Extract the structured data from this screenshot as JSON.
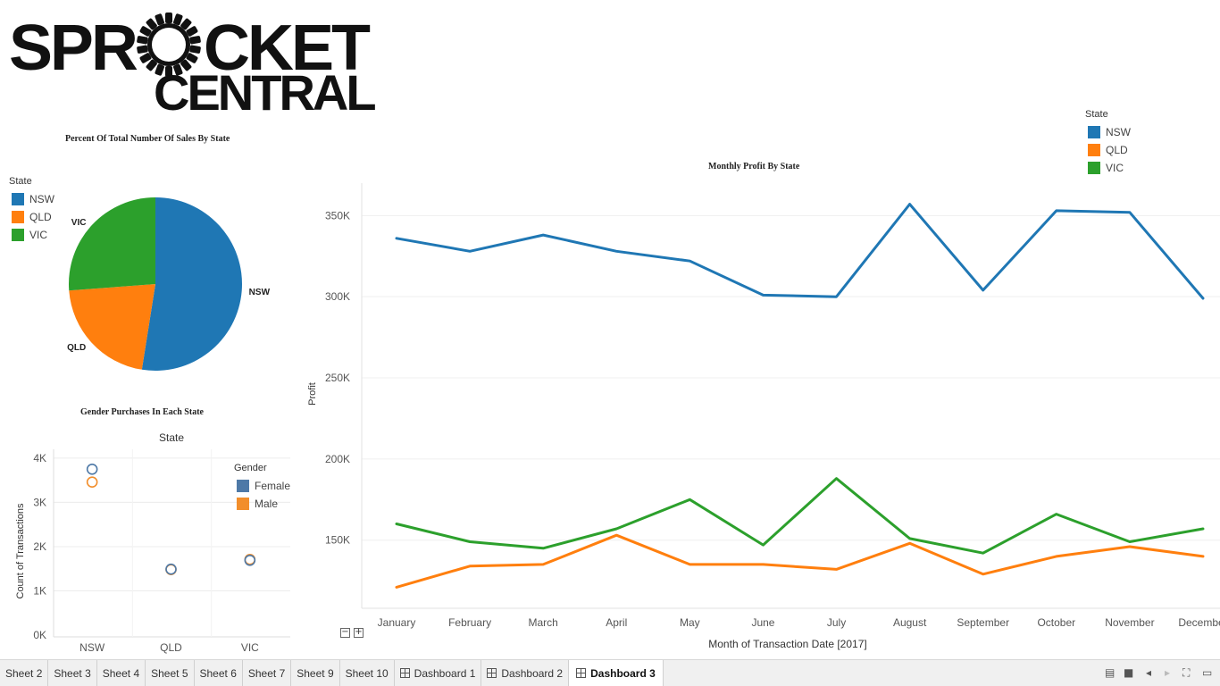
{
  "logo": {
    "line1_a": "SPR",
    "line1_b": "CKET",
    "line2": "CENTRAL"
  },
  "pie_chart": {
    "title": "Percent Of Total Number Of Sales By State",
    "legend_title": "State",
    "legend": [
      {
        "label": "NSW",
        "color": "#1f77b4"
      },
      {
        "label": "QLD",
        "color": "#ff7f0e"
      },
      {
        "label": "VIC",
        "color": "#2ca02c"
      }
    ]
  },
  "scatter_chart": {
    "title": "Gender Purchases In Each State",
    "legend_title": "Gender",
    "legend": [
      {
        "label": "Female",
        "color": "#4e79a7"
      },
      {
        "label": "Male",
        "color": "#f28e2b"
      }
    ]
  },
  "line_chart": {
    "title": "Monthly Profit By State",
    "legend_title": "State",
    "legend": [
      {
        "label": "NSW",
        "color": "#1f77b4"
      },
      {
        "label": "QLD",
        "color": "#ff7f0e"
      },
      {
        "label": "VIC",
        "color": "#2ca02c"
      }
    ]
  },
  "chart_data": [
    {
      "type": "pie",
      "title": "Percent Of Total Number Of Sales By State",
      "legend_title": "State",
      "categories": [
        "NSW",
        "QLD",
        "VIC"
      ],
      "values": [
        52.5,
        21.3,
        26.2
      ],
      "colors": [
        "#1f77b4",
        "#ff7f0e",
        "#2ca02c"
      ]
    },
    {
      "type": "scatter",
      "title": "Gender Purchases In Each State",
      "column_header": "State",
      "categories": [
        "NSW",
        "QLD",
        "VIC"
      ],
      "ylabel": "Count of Transactions",
      "ylim": [
        0,
        4200
      ],
      "yticks": [
        0,
        1000,
        2000,
        3000,
        4000
      ],
      "ytick_labels": [
        "0K",
        "1K",
        "2K",
        "3K",
        "4K"
      ],
      "legend_title": "Gender",
      "series": [
        {
          "name": "Female",
          "color": "#4e79a7",
          "values": [
            3750,
            1490,
            1690
          ]
        },
        {
          "name": "Male",
          "color": "#f28e2b",
          "values": [
            3460,
            1480,
            1710
          ]
        }
      ]
    },
    {
      "type": "line",
      "title": "Monthly Profit By State",
      "xlabel": "Month of Transaction Date [2017]",
      "ylabel": "Profit",
      "categories": [
        "January",
        "February",
        "March",
        "April",
        "May",
        "June",
        "July",
        "August",
        "September",
        "October",
        "November",
        "December"
      ],
      "ylim": [
        108000,
        370000
      ],
      "yticks": [
        150000,
        200000,
        250000,
        300000,
        350000
      ],
      "ytick_labels": [
        "150K",
        "200K",
        "250K",
        "300K",
        "350K"
      ],
      "legend_title": "State",
      "series": [
        {
          "name": "NSW",
          "color": "#1f77b4",
          "values": [
            336000,
            328000,
            338000,
            328000,
            322000,
            301000,
            300000,
            357000,
            304000,
            353000,
            352000,
            299000
          ]
        },
        {
          "name": "QLD",
          "color": "#ff7f0e",
          "values": [
            121000,
            134000,
            135000,
            153000,
            135000,
            135000,
            132000,
            148000,
            129000,
            140000,
            146000,
            140000
          ]
        },
        {
          "name": "VIC",
          "color": "#2ca02c",
          "values": [
            160000,
            149000,
            145000,
            157000,
            175000,
            147000,
            188000,
            151000,
            142000,
            166000,
            149000,
            157000
          ]
        }
      ]
    }
  ],
  "zoom_controls": {
    "minus": "−",
    "plus": "+"
  },
  "tabs": [
    {
      "label": "Sheet 2",
      "dashboard": false,
      "active": false
    },
    {
      "label": "Sheet 3",
      "dashboard": false,
      "active": false
    },
    {
      "label": "Sheet 4",
      "dashboard": false,
      "active": false
    },
    {
      "label": "Sheet 5",
      "dashboard": false,
      "active": false
    },
    {
      "label": "Sheet 6",
      "dashboard": false,
      "active": false
    },
    {
      "label": "Sheet 7",
      "dashboard": false,
      "active": false
    },
    {
      "label": "Sheet 9",
      "dashboard": false,
      "active": false
    },
    {
      "label": "Sheet 10",
      "dashboard": false,
      "active": false
    },
    {
      "label": "Dashboard 1",
      "dashboard": true,
      "active": false
    },
    {
      "label": "Dashboard 2",
      "dashboard": true,
      "active": false
    },
    {
      "label": "Dashboard 3",
      "dashboard": true,
      "active": true
    }
  ],
  "toolbar_icons": [
    "sheet-sorter-icon",
    "filmstrip-icon",
    "prev-sheet-icon",
    "next-sheet-icon",
    "fit-screen-icon",
    "presentation-mode-icon"
  ]
}
